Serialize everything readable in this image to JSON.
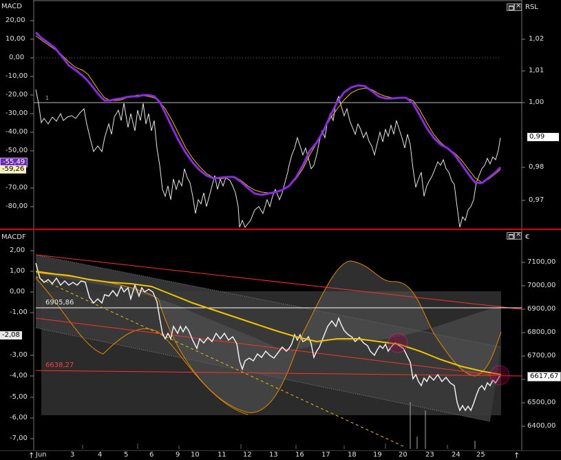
{
  "upper_panel": {
    "left_title": "MACD",
    "right_title": "RSL",
    "left_ticks": [
      "20,00",
      "10,00",
      "0,00",
      "-10,00",
      "-20,00",
      "-30,00",
      "-40,00",
      "-50,00",
      "-70,00",
      "-80,00"
    ],
    "right_ticks": [
      "1,02",
      "1,01",
      "1,00",
      "0,98",
      "0,97"
    ],
    "marker_small": "1",
    "value_tag_macd_1": "-55,49",
    "value_tag_macd_2": "-59,26",
    "value_tag_rsl": "0,99"
  },
  "lower_panel": {
    "left_title": "MACDF",
    "right_title": "€",
    "left_ticks": [
      "2,00",
      "1,00",
      "0,00",
      "-1,00",
      "-3,00",
      "-4,00",
      "-5,00",
      "-6,00",
      "-7,00"
    ],
    "right_ticks": [
      "7100,00",
      "7000,00",
      "6900,00",
      "6800,00",
      "6700,00",
      "6600,00",
      "6500,00",
      "6400,00"
    ],
    "value_tag_macdf": "-2,08",
    "value_tag_price": "6617,67",
    "level_label_1": "6905,86",
    "level_label_2": "6638,27"
  },
  "date_axis": {
    "labels": [
      "Jun",
      "3",
      "4",
      "5",
      "6",
      "9",
      "10",
      "11",
      "12",
      "13",
      "16",
      "17",
      "18",
      "19",
      "20",
      "23",
      "24",
      "25"
    ]
  },
  "colors": {
    "macd_line": "#8a2be2",
    "signal_line": "#e8c200",
    "price_line": "#ffffff",
    "trend_lines": "#ff3030",
    "moving_average": "#f0c400",
    "envelope": "#e08a00",
    "background": "#000000"
  }
}
